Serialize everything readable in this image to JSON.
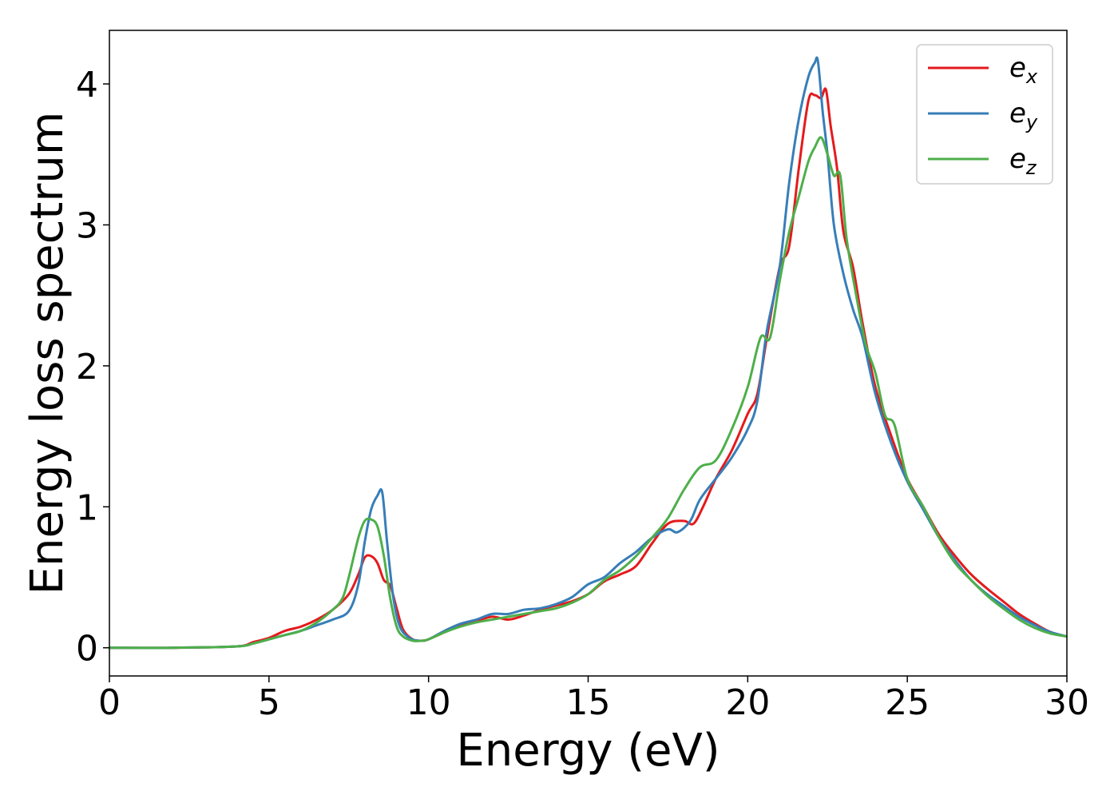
{
  "chart_data": {
    "type": "line",
    "title": "",
    "xlabel": "Energy (eV)",
    "ylabel": "Energy loss spectrum",
    "xlim": [
      0,
      30
    ],
    "ylim": [
      -0.2,
      4.38
    ],
    "xticks": [
      0,
      5,
      10,
      15,
      20,
      25,
      30
    ],
    "yticks": [
      0,
      1,
      2,
      3,
      4
    ],
    "grid": false,
    "legend_position": "top-right",
    "series": [
      {
        "name": "e_x",
        "base": "e",
        "sub": "x",
        "color": "#e41a1c",
        "x": [
          0,
          2,
          4,
          4.5,
          5,
          5.5,
          6,
          6.5,
          7,
          7.5,
          7.8,
          8.0,
          8.2,
          8.4,
          8.6,
          8.8,
          9.0,
          9.2,
          9.5,
          9.8,
          10,
          10.5,
          11,
          11.5,
          12,
          12.5,
          13,
          13.5,
          14,
          14.5,
          15,
          15.5,
          16,
          16.5,
          17,
          17.5,
          18,
          18.3,
          18.6,
          19,
          19.5,
          20,
          20.3,
          20.6,
          21,
          21.3,
          21.6,
          21.9,
          22.1,
          22.3,
          22.45,
          22.6,
          22.8,
          23,
          23.3,
          23.6,
          24,
          24.5,
          25,
          25.5,
          26,
          26.5,
          27,
          27.5,
          28,
          28.5,
          29,
          29.5,
          30
        ],
        "y": [
          0,
          0,
          0.01,
          0.04,
          0.07,
          0.12,
          0.15,
          0.2,
          0.27,
          0.38,
          0.52,
          0.64,
          0.65,
          0.6,
          0.48,
          0.44,
          0.28,
          0.13,
          0.06,
          0.05,
          0.06,
          0.11,
          0.16,
          0.19,
          0.22,
          0.2,
          0.23,
          0.27,
          0.3,
          0.33,
          0.38,
          0.47,
          0.52,
          0.58,
          0.74,
          0.88,
          0.9,
          0.88,
          1.0,
          1.2,
          1.4,
          1.66,
          1.8,
          2.2,
          2.7,
          2.85,
          3.4,
          3.88,
          3.92,
          3.9,
          3.96,
          3.7,
          3.4,
          2.95,
          2.7,
          2.3,
          1.85,
          1.5,
          1.2,
          1.0,
          0.8,
          0.65,
          0.52,
          0.42,
          0.33,
          0.24,
          0.17,
          0.11,
          0.08
        ]
      },
      {
        "name": "e_y",
        "base": "e",
        "sub": "y",
        "color": "#377eb8",
        "x": [
          0,
          2,
          4,
          4.5,
          5,
          5.5,
          6,
          6.5,
          7,
          7.5,
          7.8,
          8.0,
          8.2,
          8.4,
          8.55,
          8.7,
          8.9,
          9.1,
          9.4,
          9.7,
          10,
          10.5,
          11,
          11.5,
          12,
          12.5,
          13,
          13.5,
          14,
          14.5,
          15,
          15.5,
          16,
          16.5,
          17,
          17.5,
          17.8,
          18.2,
          18.5,
          19,
          19.5,
          20,
          20.3,
          20.6,
          21,
          21.3,
          21.6,
          21.9,
          22.1,
          22.2,
          22.35,
          22.5,
          22.7,
          23,
          23.3,
          23.6,
          24,
          24.5,
          25,
          25.5,
          26,
          26.5,
          27,
          27.5,
          28,
          28.5,
          29,
          29.5,
          30
        ],
        "y": [
          0,
          0,
          0.01,
          0.03,
          0.06,
          0.09,
          0.12,
          0.16,
          0.2,
          0.26,
          0.45,
          0.75,
          0.98,
          1.08,
          1.1,
          0.75,
          0.35,
          0.15,
          0.07,
          0.05,
          0.06,
          0.12,
          0.17,
          0.2,
          0.24,
          0.24,
          0.27,
          0.28,
          0.31,
          0.36,
          0.45,
          0.5,
          0.6,
          0.68,
          0.78,
          0.84,
          0.82,
          0.9,
          1.05,
          1.2,
          1.35,
          1.55,
          1.75,
          2.25,
          2.7,
          3.3,
          3.75,
          4.05,
          4.15,
          4.16,
          3.8,
          3.5,
          3.0,
          2.65,
          2.4,
          2.2,
          1.8,
          1.45,
          1.18,
          0.98,
          0.78,
          0.62,
          0.48,
          0.38,
          0.3,
          0.22,
          0.16,
          0.11,
          0.08
        ]
      },
      {
        "name": "e_z",
        "base": "e",
        "sub": "z",
        "color": "#4daf4a",
        "x": [
          0,
          2,
          4,
          4.5,
          5,
          5.5,
          6,
          6.5,
          7,
          7.3,
          7.5,
          7.8,
          8.0,
          8.2,
          8.4,
          8.6,
          8.8,
          9.0,
          9.2,
          9.5,
          9.8,
          10,
          10.5,
          11,
          11.5,
          12,
          12.5,
          13,
          13.5,
          14,
          14.5,
          15,
          15.5,
          16,
          16.5,
          17,
          17.5,
          18,
          18.5,
          19,
          19.5,
          20,
          20.4,
          20.7,
          21,
          21.3,
          21.6,
          21.9,
          22.1,
          22.3,
          22.5,
          22.7,
          22.9,
          23.1,
          23.4,
          23.7,
          24,
          24.3,
          24.6,
          25,
          25.5,
          26,
          26.5,
          27,
          27.5,
          28,
          28.5,
          29,
          29.5,
          30
        ],
        "y": [
          0,
          0,
          0.01,
          0.03,
          0.06,
          0.09,
          0.12,
          0.18,
          0.27,
          0.35,
          0.5,
          0.78,
          0.9,
          0.91,
          0.86,
          0.65,
          0.35,
          0.15,
          0.08,
          0.05,
          0.05,
          0.06,
          0.11,
          0.15,
          0.18,
          0.2,
          0.22,
          0.24,
          0.26,
          0.28,
          0.32,
          0.38,
          0.48,
          0.55,
          0.65,
          0.78,
          0.92,
          1.12,
          1.28,
          1.33,
          1.55,
          1.85,
          2.2,
          2.2,
          2.6,
          2.95,
          3.2,
          3.45,
          3.55,
          3.62,
          3.5,
          3.35,
          3.35,
          2.9,
          2.5,
          2.15,
          1.95,
          1.65,
          1.58,
          1.2,
          1.0,
          0.78,
          0.6,
          0.48,
          0.37,
          0.28,
          0.2,
          0.14,
          0.1,
          0.08
        ]
      }
    ]
  }
}
